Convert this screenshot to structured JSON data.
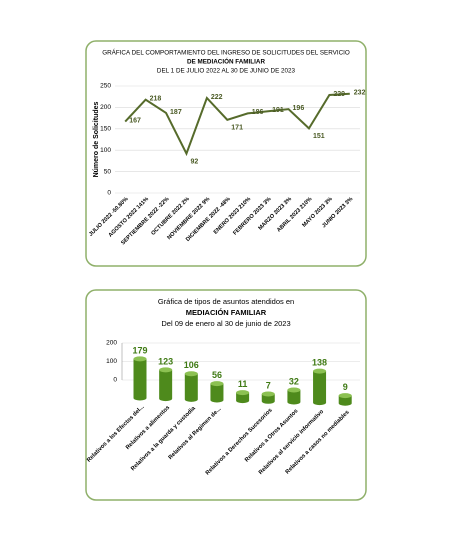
{
  "chart_data": [
    {
      "type": "line",
      "title_lines": [
        "GRÁFICA DEL COMPORTAMIENTO DEL  INGRESO DE SOLICITUDES DEL SERVICIO",
        "DE MEDIACIÓN FAMILIAR",
        "DEL  1  DE  JULIO 2022  AL  30 DE JUNIO  DE 2023"
      ],
      "y_label": "Número de Solicitudes",
      "categories": [
        "JULIO 2022 -50.80%",
        "AGOSTO 2022   141%",
        "SEPTIEMBRE 2022  -22%",
        "OCTUBRE 2022    2%",
        "NOVIEMBRE 2022    9%",
        "DICIEMBRE 2022   -48%",
        "ENERO 2023  210%",
        "FEBRERO   2023   3%",
        "MARZO   2023   3%",
        "ABRIL 2023  210%",
        "MAYO    2023    3%",
        "JUNIO    2023    3%"
      ],
      "values": [
        167,
        218,
        187,
        92,
        222,
        171,
        186,
        191,
        196,
        151,
        229,
        232
      ],
      "color": "#566b2b",
      "ylim": [
        0,
        250
      ],
      "yticks": [
        0,
        50,
        100,
        150,
        200,
        250
      ],
      "grid": true
    },
    {
      "type": "cylinder",
      "title_lines": [
        "Gráfica de tipos de asuntos atendidos en",
        "MEDIACIÓN FAMILIAR",
        "Del  09 de enero al  30 de junio de 2023"
      ],
      "categories": [
        "Relativos a los Efectos del...",
        "Relativos a alimentos",
        "Relativos a la guarda y custodia",
        "Relativos al Regimen de...",
        null,
        "Relativos a Derechos Sucesorios",
        "Relativos a Otros Asuntos",
        "Relativos al servicio informativo",
        "Relativos a casos no mediables"
      ],
      "values": [
        179,
        123,
        106,
        56,
        11,
        7,
        32,
        138,
        9
      ],
      "color": "#4e8a1c",
      "ylim": [
        0,
        200
      ],
      "yticks": [
        0,
        100,
        200
      ],
      "grid": true
    }
  ]
}
